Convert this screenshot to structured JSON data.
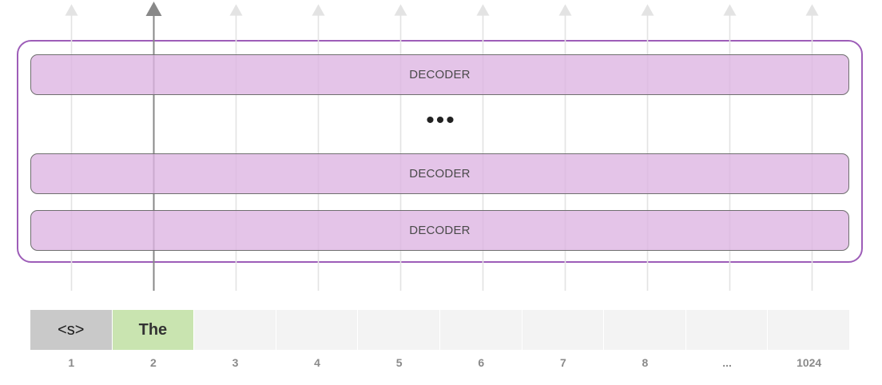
{
  "colors": {
    "decoder_fill": "#e3c3e8",
    "stack_border": "#9d5db8",
    "start_token_fill": "#c9c9c9",
    "word_token_fill": "#c9e4b0",
    "empty_token_fill": "#f3f3f3",
    "active_arrow": "#888888",
    "inactive_arrow": "#e3e3e3"
  },
  "decoders": [
    {
      "label": "DECODER"
    },
    {
      "label": "DECODER"
    },
    {
      "label": "DECODER"
    }
  ],
  "ellipsis": "•••",
  "tokens": [
    {
      "text": "<s>",
      "kind": "start"
    },
    {
      "text": "The",
      "kind": "word"
    },
    {
      "text": "",
      "kind": "empty"
    },
    {
      "text": "",
      "kind": "empty"
    },
    {
      "text": "",
      "kind": "empty"
    },
    {
      "text": "",
      "kind": "empty"
    },
    {
      "text": "",
      "kind": "empty"
    },
    {
      "text": "",
      "kind": "empty"
    },
    {
      "text": "",
      "kind": "empty"
    },
    {
      "text": "",
      "kind": "empty"
    }
  ],
  "positions": [
    "1",
    "2",
    "3",
    "4",
    "5",
    "6",
    "7",
    "8",
    "...",
    "1024"
  ],
  "active_position": "2"
}
